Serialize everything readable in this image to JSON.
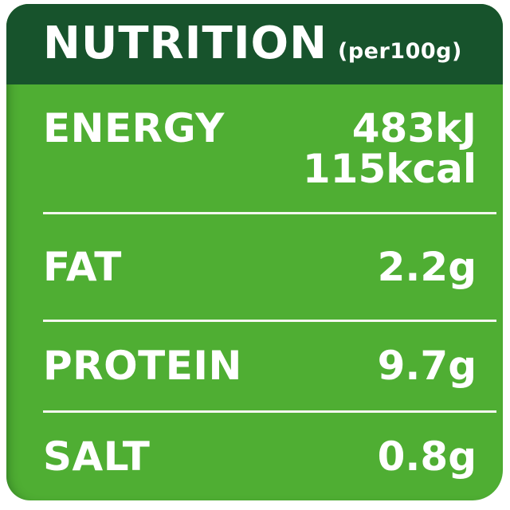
{
  "label": {
    "title": "NUTRITION",
    "subtitle": "(per100g)",
    "rows": [
      {
        "name": "ENERGY",
        "value_lines": [
          "483kJ",
          "115kcal"
        ]
      },
      {
        "name": "FAT",
        "value_lines": [
          "2.2g"
        ]
      },
      {
        "name": "PROTEIN",
        "value_lines": [
          "9.7g"
        ]
      },
      {
        "name": "SALT",
        "value_lines": [
          "0.8g"
        ]
      }
    ],
    "colors": {
      "header_bg": "#17532c",
      "body_bg": "#4fae33",
      "text": "#ffffff",
      "divider": "#f3f7ee",
      "page_bg": "#ffffff"
    }
  }
}
